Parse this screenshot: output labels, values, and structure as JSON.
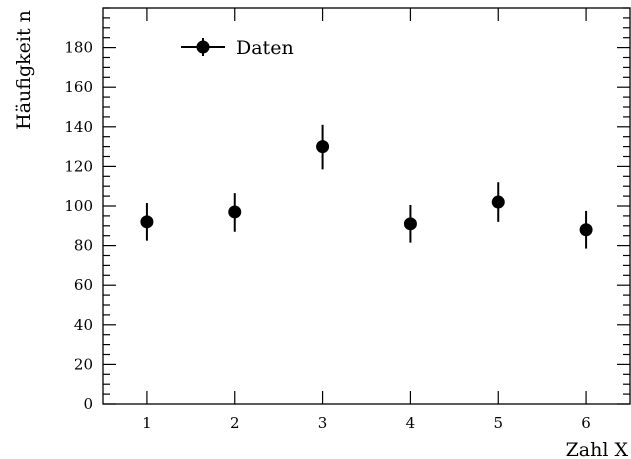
{
  "chart_data": {
    "type": "scatter",
    "xlabel": "Zahl X",
    "ylabel": "Häufigkeit n",
    "xlim": [
      0.5,
      6.5
    ],
    "ylim": [
      0,
      200
    ],
    "x_ticks": [
      1,
      2,
      3,
      4,
      5,
      6
    ],
    "y_ticks": [
      0,
      20,
      40,
      60,
      80,
      100,
      120,
      140,
      160,
      180
    ],
    "grid": false,
    "legend_position": "top-left",
    "series": [
      {
        "name": "Daten",
        "color": "#000000",
        "marker": "circle",
        "points": [
          {
            "x": 1,
            "y": 92,
            "err_low": 82.5,
            "err_high": 101.5
          },
          {
            "x": 2,
            "y": 97,
            "err_low": 87,
            "err_high": 106.5
          },
          {
            "x": 3,
            "y": 130,
            "err_low": 118.5,
            "err_high": 141
          },
          {
            "x": 4,
            "y": 91,
            "err_low": 81.5,
            "err_high": 100.5
          },
          {
            "x": 5,
            "y": 102,
            "err_low": 92,
            "err_high": 112
          },
          {
            "x": 6,
            "y": 88,
            "err_low": 78.5,
            "err_high": 97.5
          }
        ]
      }
    ]
  }
}
